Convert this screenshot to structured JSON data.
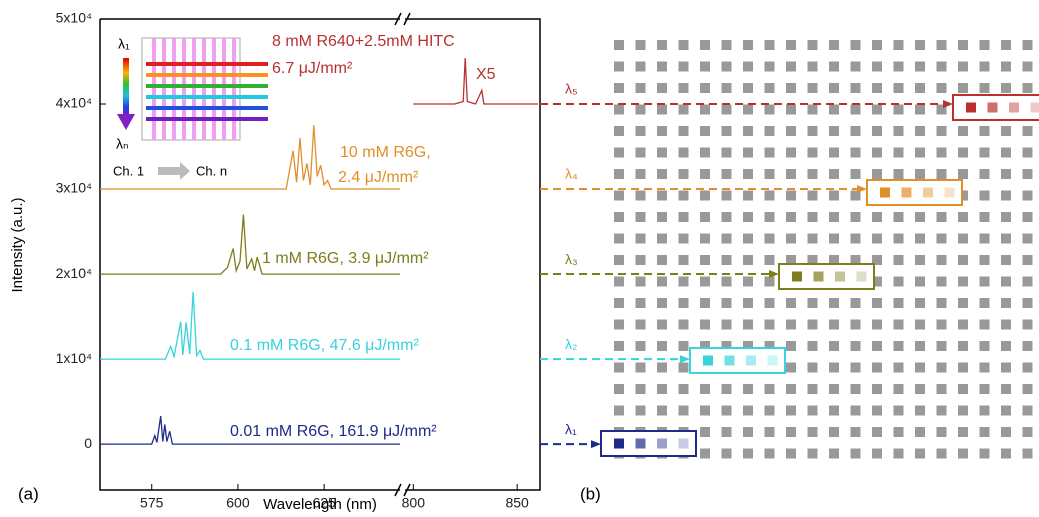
{
  "chart_data": {
    "type": "line",
    "xlabel": "Wavelength (nm)",
    "ylabel": "Intensity (a.u.)",
    "xlim": [
      560,
      861
    ],
    "xbreak": [
      647,
      796
    ],
    "xticks": [
      575,
      600,
      625,
      800,
      850
    ],
    "ylim": [
      -5400,
      50000
    ],
    "yticks": [
      0,
      {
        "value": 10000,
        "label": "1x10⁴"
      },
      {
        "value": 20000,
        "label": "2x10⁴"
      },
      {
        "value": 30000,
        "label": "3x10⁴"
      },
      {
        "value": 40000,
        "label": "4x10⁴"
      },
      {
        "value": 50000,
        "label": "5x10⁴"
      }
    ],
    "series": [
      {
        "name": "λ₁",
        "color": "#1f2a8c",
        "labels": [
          "0.01 mM R6G, 161.9 μJ/mm²"
        ],
        "x": [
          560,
          575,
          575.9,
          576.5,
          577.6,
          578.2,
          578.8,
          579.4,
          580.2,
          581,
          647
        ],
        "values": [
          0,
          0,
          1000,
          200,
          3300,
          300,
          2300,
          300,
          1500,
          0,
          0
        ]
      },
      {
        "name": "λ₂",
        "color": "#38d3dc",
        "labels": [
          "0.1 mM R6G, 47.6 μJ/mm²"
        ],
        "x": [
          560,
          579,
          580.5,
          581.5,
          583.4,
          584,
          585,
          586,
          587,
          588,
          589,
          590,
          647
        ],
        "values": [
          10000,
          10000,
          11500,
          10300,
          14400,
          10500,
          14300,
          10600,
          17900,
          10400,
          11000,
          10000,
          10000
        ]
      },
      {
        "name": "λ₃",
        "color": "#7d7d1c",
        "labels": [
          "1 mM R6G, 3.9 μJ/mm²"
        ],
        "x": [
          560,
          595,
          597,
          598.6,
          599.5,
          600.6,
          601.6,
          602.6,
          604,
          604.8,
          605.6,
          607,
          647
        ],
        "values": [
          20000,
          20000,
          20800,
          23000,
          20400,
          21500,
          27000,
          20600,
          21800,
          20400,
          22000,
          20000,
          20000
        ]
      },
      {
        "name": "λ₄",
        "color": "#e08f2b",
        "labels": [
          "10 mM R6G,",
          "2.4 μJ/mm²"
        ],
        "x": [
          560,
          614,
          616,
          617,
          618,
          619,
          620,
          621,
          622,
          623,
          624,
          625,
          626,
          627,
          647
        ],
        "values": [
          30000,
          30000,
          34500,
          30800,
          36000,
          31000,
          33000,
          30500,
          37500,
          31500,
          32800,
          30500,
          31000,
          30000,
          30000
        ]
      },
      {
        "name": "λ₅",
        "color": "#b8312f",
        "labels": [
          "8 mM R640+2.5mM HITC",
          "6.7 μJ/mm²",
          "X5"
        ],
        "x": [
          800,
          820,
          824,
          825,
          826,
          830,
          833,
          834,
          835,
          860
        ],
        "values": [
          40000,
          40000,
          40300,
          45400,
          40300,
          40000,
          41600,
          40000,
          40000,
          40000
        ]
      }
    ]
  },
  "inset": {
    "top": "λ₁",
    "bottom": "λₙ",
    "left": "Ch. 1",
    "right": "Ch. n"
  },
  "panels": {
    "a": "(a)",
    "b": "(b)"
  }
}
